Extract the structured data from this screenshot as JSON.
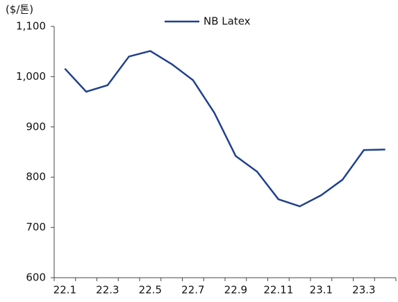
{
  "chart_data": {
    "type": "line",
    "y_label": "($/톤)",
    "categories": [
      "22.1",
      null,
      "22.3",
      null,
      "22.5",
      null,
      "22.7",
      null,
      "22.9",
      null,
      "22.11",
      null,
      "23.1",
      null,
      "23.3",
      null
    ],
    "series": [
      {
        "name": "NB Latex",
        "color": "#1f3f8f",
        "values": [
          1016,
          970,
          983,
          1040,
          1051,
          1025,
          993,
          928,
          842,
          811,
          756,
          742,
          764,
          795,
          854,
          855
        ]
      }
    ],
    "ylim": [
      600,
      1100
    ],
    "yticks": [
      600,
      700,
      800,
      900,
      {
        "value": 1000,
        "label": "1,000"
      },
      {
        "value": 1100,
        "label": "1,100"
      }
    ],
    "grid": false
  }
}
